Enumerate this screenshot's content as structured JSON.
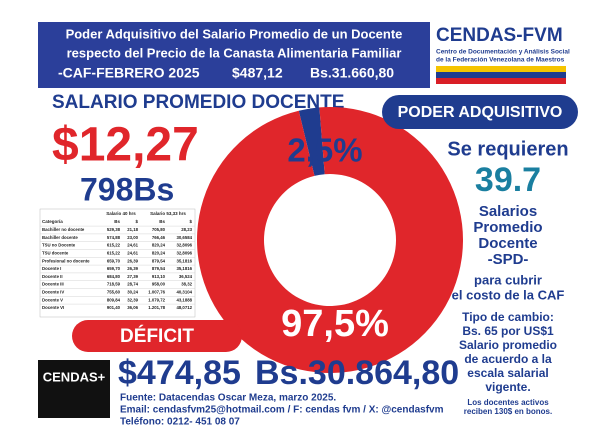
{
  "header": {
    "lines": [
      "Poder Adquisitivo del Salario Promedio de un Docente",
      "respecto del Precio de la Canasta Alimentaria Familiar"
    ],
    "caf": "-CAF-FEBRERO 2025",
    "caf_usd": "$487,12",
    "caf_bs": "Bs.31.660,80"
  },
  "logo": {
    "name": "CENDAS-FVM",
    "line1": "Centro de Documentación y Análisis Social",
    "line2": "de la Federación Venezolana de Maestros"
  },
  "subtitle": "SALARIO PROMEDIO DOCENTE",
  "salary": {
    "usd": "$12,27",
    "bs": "798Bs"
  },
  "chart_data": {
    "type": "donut",
    "categories": [
      "PODER ADQUISITIVO",
      "DÉFICIT"
    ],
    "values": [
      2.5,
      97.5
    ],
    "value_labels": [
      "2,5%",
      "97,5%"
    ],
    "colors": [
      "#1f3c8f",
      "#e0262b"
    ]
  },
  "right_panel": {
    "lines": [
      "Se requieren",
      "39.7",
      "Salarios",
      "Promedio",
      "Docente",
      "-SPD-",
      "para cubrir",
      "el costo de la CAF",
      "Tipo de cambio:",
      "Bs. 65 por US$1",
      "Salario promedio",
      "de acuerdo a la",
      "escala salarial",
      "vigente.",
      "Los docentes activos",
      "reciben 130$ en bonos."
    ]
  },
  "deficit": {
    "usd": "$474,85",
    "bs": "Bs.30.864,80"
  },
  "table": {
    "groups": [
      "Salario 40 hrs",
      "Salario 53,33 hrs"
    ],
    "columns": [
      "Categoría",
      "Bs",
      "$",
      "Bs",
      "$"
    ],
    "rows": [
      [
        "Bachiller no docente",
        "529,38",
        "21,18",
        "705,80",
        "28,23"
      ],
      [
        "Bachiller docente",
        "574,88",
        "23,00",
        "766,46",
        "30,6584"
      ],
      [
        "TSU no Docente",
        "615,22",
        "24,61",
        "820,24",
        "32,8096"
      ],
      [
        "TSU docente",
        "615,22",
        "24,61",
        "820,24",
        "32,8096"
      ],
      [
        "Profesional no docente",
        "659,70",
        "26,39",
        "879,54",
        "35,1816"
      ],
      [
        "Docente I",
        "659,70",
        "26,39",
        "879,54",
        "35,1816"
      ],
      [
        "Docente II",
        "684,80",
        "27,39",
        "913,10",
        "36,524"
      ],
      [
        "Docente III",
        "718,59",
        "28,74",
        "958,00",
        "38,32"
      ],
      [
        "Docente IV",
        "755,60",
        "30,24",
        "1.007,76",
        "40,3104"
      ],
      [
        "Docente V",
        "809,84",
        "32,39",
        "1.079,72",
        "43,1888"
      ],
      [
        "Docente VI",
        "901,40",
        "36,06",
        "1.201,78",
        "48,0712"
      ]
    ]
  },
  "footer": {
    "logo": "CENDAS+",
    "lines": [
      "Fuente: Datacendas Oscar Meza, marzo 2025.",
      "Email: cendasfvm25@hotmail.com / F: cendas fvm / X: @cendasfvm",
      "Teléfono: 0212- 451 08 07"
    ]
  }
}
